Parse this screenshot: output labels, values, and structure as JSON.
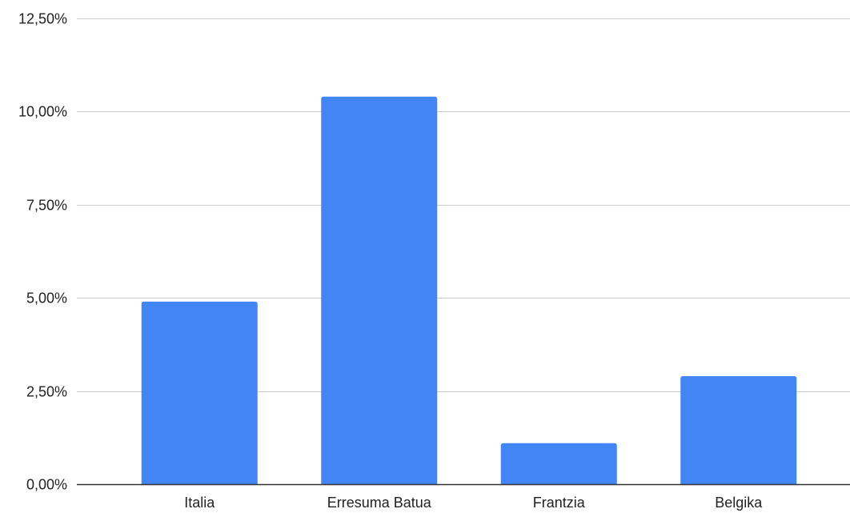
{
  "chart_data": {
    "type": "bar",
    "categories": [
      "Italia",
      "Erresuma Batua",
      "Frantzia",
      "Belgika"
    ],
    "values": [
      4.9,
      10.4,
      1.1,
      2.9
    ],
    "ylim": [
      0,
      12.5
    ],
    "yticks": [
      0,
      2.5,
      5,
      7.5,
      10,
      12.5
    ],
    "ytick_labels": [
      "0,00%",
      "2,50%",
      "5,00%",
      "7,50%",
      "10,00%",
      "12,50%"
    ],
    "title": "",
    "xlabel": "",
    "ylabel": "",
    "grid": true,
    "legend": "none",
    "bar_color": "#4285f4",
    "grid_color": "#cccccc",
    "axis_color": "#333333"
  }
}
